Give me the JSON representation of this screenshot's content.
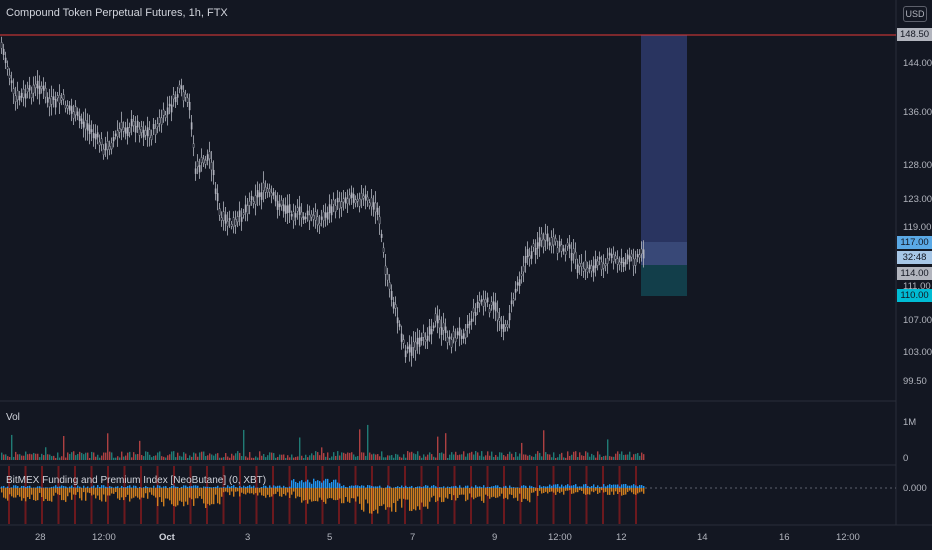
{
  "header": {
    "title": "Compound Token Perpetual Futures, 1h, FTX",
    "currency_button": "USD"
  },
  "price_axis": {
    "ticks": [
      "144.00",
      "136.00",
      "128.00",
      "123.00",
      "119.00",
      "111.00",
      "107.00",
      "103.00",
      "99.50"
    ],
    "tags": {
      "top_line": "148.50",
      "current": "117.00",
      "countdown": "32:48",
      "entry": "114.00",
      "stop": "110.00"
    }
  },
  "time_axis": {
    "labels": [
      "28",
      "12:00",
      "Oct",
      "3",
      "5",
      "7",
      "9",
      "12:00",
      "12",
      "14",
      "16",
      "12:00"
    ]
  },
  "volume_pane": {
    "label": "Vol",
    "ticks": [
      "1M",
      "0"
    ]
  },
  "indicator_pane": {
    "label": "BitMEX Funding and Premium Index [NeoButane] (0, XBT)",
    "zero_tick": "0.000"
  },
  "colors": {
    "background": "#131722",
    "candle": "#b2b5be",
    "horizontal_line": "#e53935",
    "profit_zone": "#2e3a6b",
    "loss_zone": "#123e4a",
    "current_tag": "#5aa9e6",
    "stop_tag": "#00bcd4",
    "funding_positive": "#2196f3",
    "funding_negative": "#e2891f"
  }
}
